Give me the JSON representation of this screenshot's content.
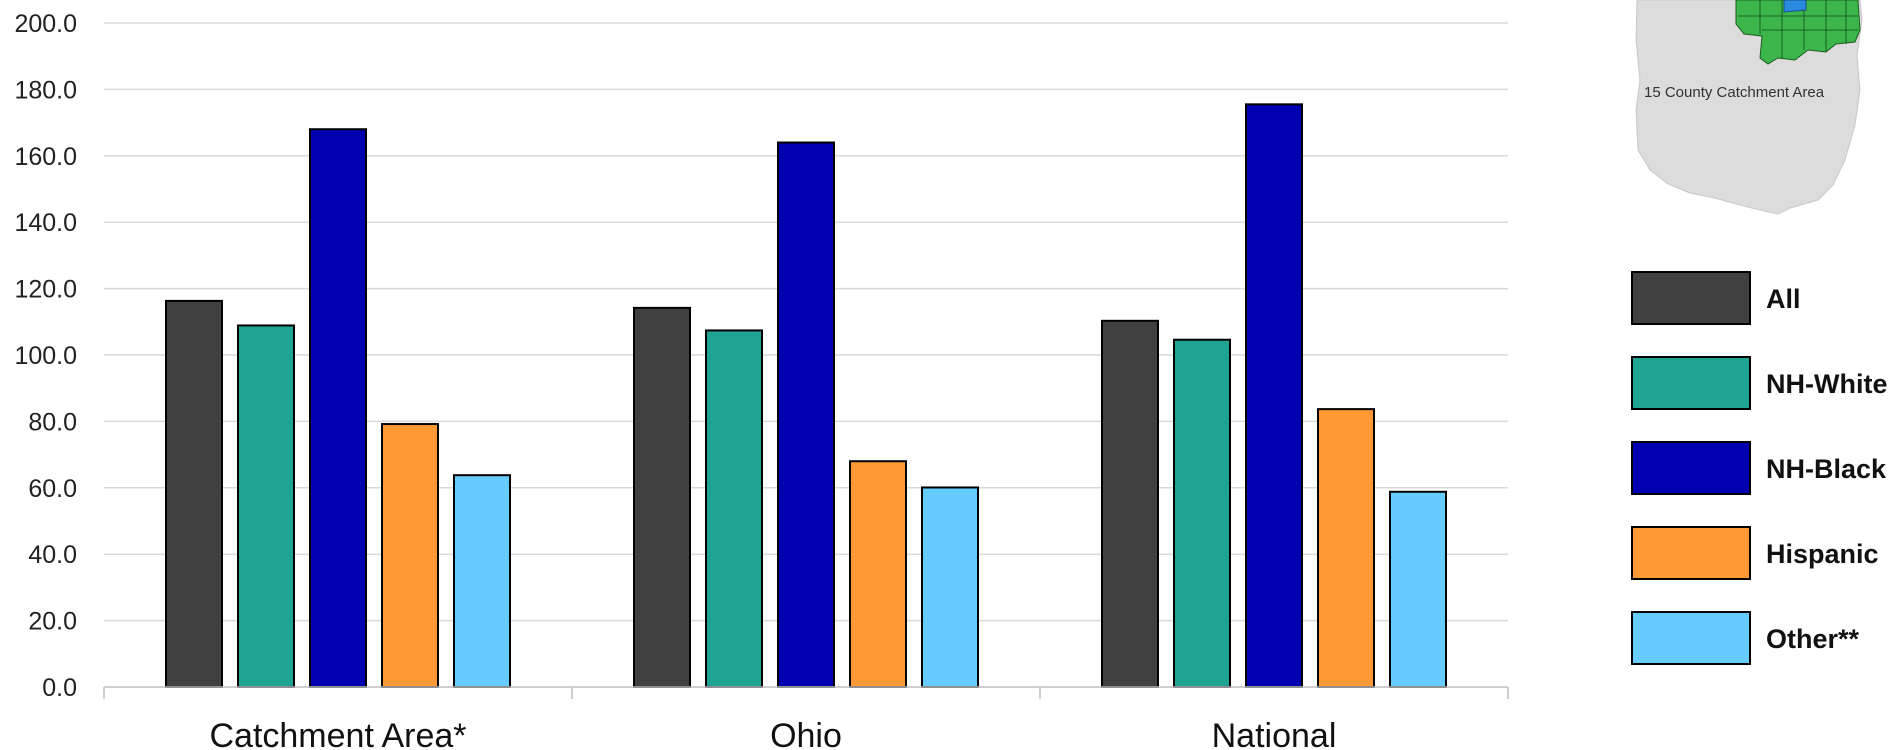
{
  "chart_data": {
    "type": "bar",
    "categories": [
      "Catchment Area*",
      "Ohio",
      "National"
    ],
    "series": [
      {
        "name": "All",
        "color": "#404040",
        "values": [
          116.3,
          114.2,
          110.3
        ]
      },
      {
        "name": "NH-White",
        "color": "#1fa393",
        "values": [
          108.9,
          107.4,
          104.6
        ]
      },
      {
        "name": "NH-Black",
        "color": "#0000b0",
        "values": [
          168.0,
          164.0,
          175.5
        ]
      },
      {
        "name": "Hispanic",
        "color": "#ff9933",
        "values": [
          79.2,
          68.0,
          83.7
        ]
      },
      {
        "name": "Other**",
        "color": "#66ccff",
        "values": [
          63.8,
          60.1,
          58.8
        ]
      }
    ],
    "ylim": [
      0,
      200
    ],
    "yticks": [
      "0.0",
      "20.0",
      "40.0",
      "60.0",
      "80.0",
      "100.0",
      "120.0",
      "140.0",
      "160.0",
      "180.0",
      "200.0"
    ],
    "grid": true,
    "legend_placement": "right"
  },
  "inset_map": {
    "label": "15 County Catchment Area",
    "region_color": "#dcdcdc",
    "catchment_color": "#3cb54a",
    "highlight_color": "#2a8ae0"
  }
}
